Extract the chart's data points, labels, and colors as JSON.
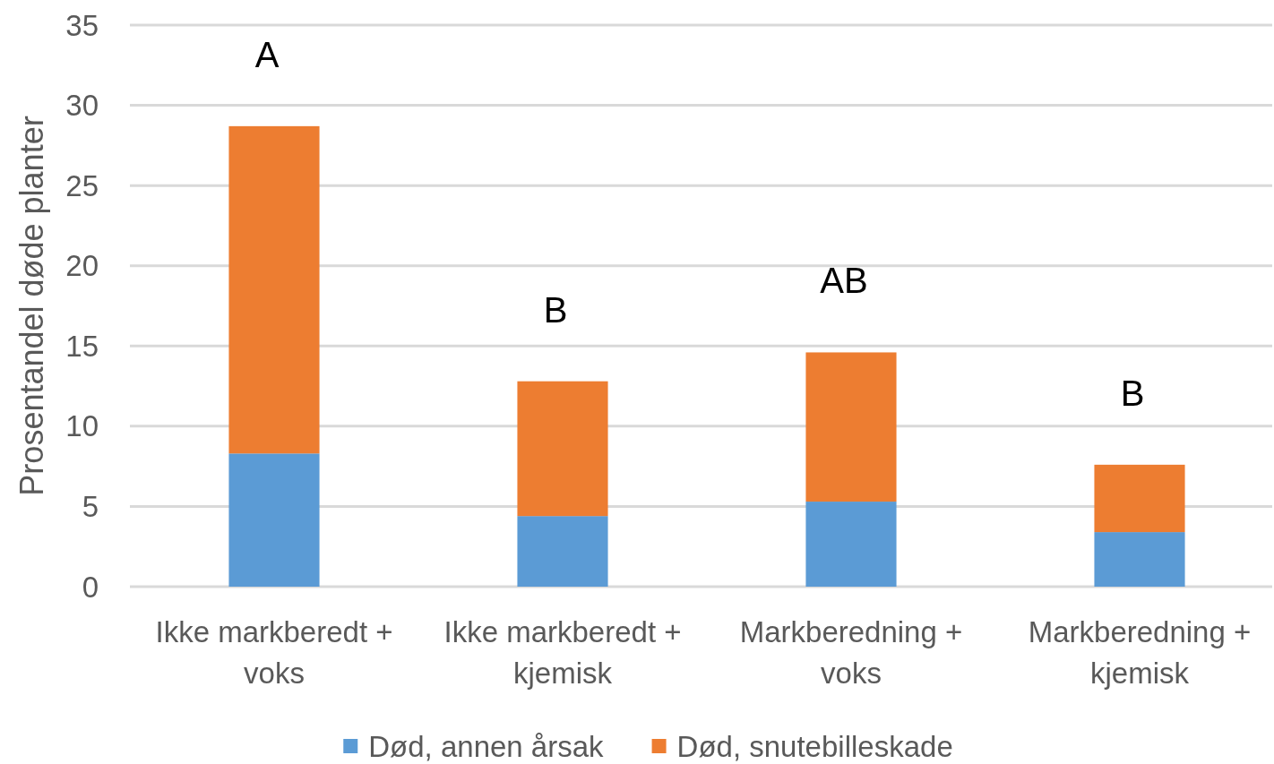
{
  "chart_data": {
    "type": "bar",
    "ylabel": "Prosentandel døde planter",
    "categories": [
      "Ikke markberedt + voks",
      "Ikke markberedt + kjemisk",
      "Markberedning + voks",
      "Markberedning + kjemisk"
    ],
    "series": [
      {
        "name": "Død, annen årsak",
        "color": "#5b9bd5",
        "values": [
          8.3,
          4.4,
          5.3,
          3.4
        ]
      },
      {
        "name": "Død, snutebilleskade",
        "color": "#ed7d31",
        "values": [
          20.4,
          8.4,
          9.3,
          4.2
        ]
      }
    ],
    "stacked": true,
    "ylim": [
      0,
      35
    ],
    "yticks": [
      0,
      5,
      10,
      15,
      20,
      25,
      30,
      35
    ],
    "grid": "y",
    "legend": "bottom",
    "annotations": [
      "A",
      "B",
      "AB",
      "B"
    ]
  }
}
